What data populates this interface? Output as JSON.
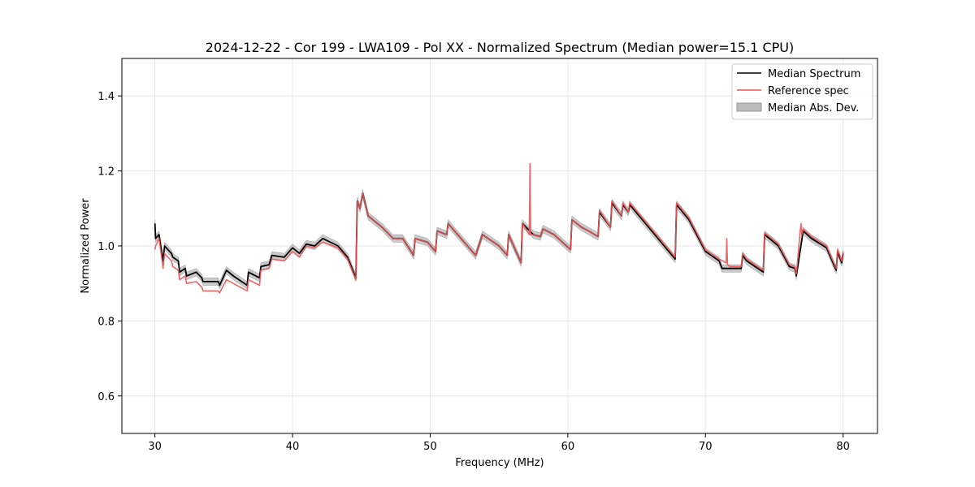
{
  "chart_data": {
    "type": "line",
    "title": "2024-12-22 - Cor 199 - LWA109 - Pol XX - Normalized Spectrum (Median power=15.1 CPU)",
    "xlabel": "Frequency (MHz)",
    "ylabel": "Normalized Power",
    "xlim": [
      27.6,
      82.5
    ],
    "ylim": [
      0.5,
      1.5
    ],
    "xticks": [
      30,
      40,
      50,
      60,
      70,
      80
    ],
    "xtick_labels": [
      "30",
      "40",
      "50",
      "60",
      "70",
      "80"
    ],
    "yticks": [
      0.6,
      0.8,
      1.0,
      1.2,
      1.4
    ],
    "ytick_labels": [
      "0.6",
      "0.8",
      "1.0",
      "1.2",
      "1.4"
    ],
    "grid": true,
    "legend_position": "top-right",
    "colors": {
      "median": "#000000",
      "reference": "#ee5555",
      "mad_fill": "#bbbbbb",
      "mad_edge": "#999999"
    },
    "series": [
      {
        "name": "Median Spectrum",
        "x": [
          30.0,
          30.05,
          30.3,
          30.6,
          30.7,
          31.2,
          31.3,
          31.7,
          31.8,
          32.2,
          32.3,
          33.0,
          33.4,
          33.5,
          34.6,
          34.7,
          35.2,
          35.7,
          36.7,
          36.8,
          37.6,
          37.7,
          38.3,
          38.5,
          39.4,
          40.0,
          40.5,
          41.0,
          41.6,
          42.2,
          43.3,
          44.0,
          44.6,
          44.7,
          44.9,
          45.1,
          45.5,
          46.5,
          47.3,
          48.0,
          48.8,
          48.9,
          49.8,
          50.4,
          50.5,
          51.2,
          51.3,
          52.0,
          53.3,
          53.8,
          54.2,
          55.0,
          55.6,
          55.7,
          56.6,
          56.7,
          57.5,
          58.0,
          58.2,
          59.0,
          60.2,
          60.3,
          61.0,
          61.5,
          62.2,
          62.3,
          63.1,
          63.2,
          63.9,
          64.0,
          64.4,
          64.5,
          67.8,
          67.9,
          68.8,
          70.0,
          71.0,
          71.2,
          71.8,
          72.6,
          72.7,
          73.0,
          74.2,
          74.3,
          75.3,
          76.1,
          76.5,
          76.6,
          77.1,
          77.7,
          78.8,
          79.5,
          79.6,
          79.9,
          80.0
        ],
        "values": [
          1.06,
          1.02,
          1.03,
          0.96,
          1.0,
          0.98,
          0.97,
          0.96,
          0.93,
          0.94,
          0.92,
          0.93,
          0.915,
          0.905,
          0.905,
          0.895,
          0.935,
          0.92,
          0.895,
          0.93,
          0.915,
          0.945,
          0.95,
          0.975,
          0.97,
          0.995,
          0.98,
          1.005,
          1.0,
          1.02,
          1.0,
          0.97,
          0.915,
          1.12,
          1.1,
          1.14,
          1.08,
          1.05,
          1.02,
          1.02,
          0.975,
          1.02,
          1.01,
          0.985,
          1.04,
          1.03,
          1.06,
          1.03,
          0.975,
          1.03,
          1.02,
          1.0,
          0.975,
          1.03,
          0.955,
          1.06,
          1.03,
          1.025,
          1.045,
          1.03,
          0.99,
          1.07,
          1.05,
          1.04,
          1.025,
          1.09,
          1.05,
          1.115,
          1.08,
          1.11,
          1.09,
          1.11,
          0.965,
          1.11,
          1.07,
          0.985,
          0.96,
          0.94,
          0.94,
          0.94,
          0.975,
          0.96,
          0.93,
          1.03,
          1.0,
          0.945,
          0.94,
          0.92,
          1.04,
          1.02,
          0.995,
          0.935,
          0.985,
          0.955,
          0.98
        ]
      },
      {
        "name": "Reference spec",
        "x": [
          30.0,
          30.05,
          30.3,
          30.6,
          30.7,
          31.2,
          31.3,
          31.7,
          31.8,
          32.2,
          32.3,
          33.0,
          33.4,
          33.5,
          34.6,
          34.7,
          35.2,
          35.7,
          36.7,
          36.8,
          37.6,
          37.7,
          38.3,
          38.5,
          39.4,
          40.0,
          40.5,
          41.0,
          41.6,
          42.2,
          43.3,
          44.0,
          44.6,
          44.7,
          44.9,
          45.1,
          45.5,
          46.5,
          47.3,
          48.0,
          48.8,
          48.9,
          49.8,
          50.4,
          50.5,
          51.2,
          51.3,
          52.0,
          53.3,
          53.8,
          54.2,
          55.0,
          55.6,
          55.7,
          56.6,
          56.7,
          57.2,
          57.25,
          57.3,
          57.5,
          58.0,
          58.2,
          59.0,
          60.2,
          60.3,
          61.0,
          61.5,
          62.2,
          62.3,
          63.1,
          63.2,
          63.9,
          64.0,
          64.4,
          64.5,
          67.8,
          67.9,
          68.8,
          70.0,
          71.0,
          71.5,
          71.55,
          71.6,
          71.8,
          72.6,
          72.7,
          73.0,
          74.2,
          74.3,
          75.3,
          76.1,
          76.5,
          76.6,
          76.9,
          76.95,
          77.0,
          77.1,
          77.7,
          78.8,
          79.5,
          79.6,
          79.9,
          80.0
        ],
        "values": [
          0.99,
          1.0,
          1.02,
          0.94,
          0.98,
          0.96,
          0.945,
          0.935,
          0.91,
          0.92,
          0.9,
          0.905,
          0.89,
          0.88,
          0.88,
          0.875,
          0.91,
          0.9,
          0.88,
          0.91,
          0.895,
          0.935,
          0.94,
          0.965,
          0.96,
          0.985,
          0.97,
          1.0,
          0.995,
          1.01,
          0.995,
          0.965,
          0.91,
          1.12,
          1.1,
          1.14,
          1.08,
          1.05,
          1.02,
          1.02,
          0.975,
          1.02,
          1.01,
          0.985,
          1.04,
          1.03,
          1.06,
          1.03,
          0.975,
          1.03,
          1.02,
          1.0,
          0.975,
          1.03,
          0.955,
          1.06,
          1.03,
          1.22,
          1.03,
          1.03,
          1.025,
          1.045,
          1.03,
          0.99,
          1.07,
          1.05,
          1.04,
          1.025,
          1.095,
          1.05,
          1.12,
          1.08,
          1.115,
          1.09,
          1.115,
          0.97,
          1.115,
          1.075,
          0.99,
          0.965,
          0.955,
          1.02,
          0.95,
          0.945,
          0.945,
          0.98,
          0.965,
          0.935,
          1.035,
          1.005,
          0.95,
          0.945,
          0.925,
          1.045,
          1.06,
          1.03,
          1.045,
          1.025,
          1.0,
          0.94,
          0.99,
          0.96,
          0.985
        ]
      }
    ],
    "mad_band": {
      "name": "Median Abs. Dev.",
      "half_width": 0.01
    }
  }
}
